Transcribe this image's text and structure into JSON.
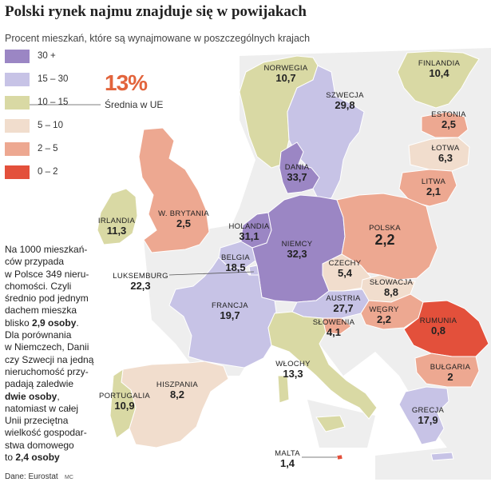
{
  "title": "Polski rynek najmu znajduje się w powijakach",
  "subtitle": "Procent mieszkań, które są wynajmowane w poszczególnych krajach",
  "legend": [
    {
      "label": "30 +",
      "color": "#9b86c4"
    },
    {
      "label": "15 – 30",
      "color": "#c7c3e6"
    },
    {
      "label": "10 – 15",
      "color": "#d9d9a4"
    },
    {
      "label": "5 – 10",
      "color": "#f1ddcd"
    },
    {
      "label": "2 – 5",
      "color": "#eda891"
    },
    {
      "label": "0 – 2",
      "color": "#e3503b"
    }
  ],
  "eu_average": {
    "value": "13%",
    "label": "Średnia w UE"
  },
  "note": {
    "p1": "Na 1000 mieszkań-",
    "p2": "ców przypada",
    "p3": "w Polsce 349 nieru-",
    "p4": "chomości. Czyli",
    "p5": "średnio pod jednym",
    "p6": "dachem mieszka",
    "p7": "blisko ",
    "p7b": "2,9 osoby",
    "p7c": ".",
    "p8": "Dla porównania",
    "p9": "w Niemczech, Danii",
    "p10": "czy Szwecji na jedną",
    "p11": "nieruchomość przy-",
    "p12": "padają zaledwie",
    "p13b": "dwie osoby",
    "p13c": ",",
    "p14": "natomiast w całej",
    "p15": "Unii przeciętna",
    "p16": "wielkość gospodar-",
    "p17": "stwa domowego",
    "p18": "to ",
    "p18b": "2,4 osoby"
  },
  "source": "Dane: Eurostat",
  "credit": "MC",
  "countries": [
    {
      "name": "NORWEGIA",
      "value": "10,7",
      "bucket": "10 – 15"
    },
    {
      "name": "FINLANDIA",
      "value": "10,4",
      "bucket": "10 – 15"
    },
    {
      "name": "SZWECJA",
      "value": "29,8",
      "bucket": "15 – 30"
    },
    {
      "name": "ESTONIA",
      "value": "2,5",
      "bucket": "2 – 5"
    },
    {
      "name": "ŁOTWA",
      "value": "6,3",
      "bucket": "5 – 10"
    },
    {
      "name": "LITWA",
      "value": "2,1",
      "bucket": "2 – 5"
    },
    {
      "name": "DANIA",
      "value": "33,7",
      "bucket": "30 +"
    },
    {
      "name": "IRLANDIA",
      "value": "11,3",
      "bucket": "10 – 15"
    },
    {
      "name": "W. BRYTANIA",
      "value": "2,5",
      "bucket": "2 – 5"
    },
    {
      "name": "HOLANDIA",
      "value": "31,1",
      "bucket": "30 +"
    },
    {
      "name": "POLSKA",
      "value": "2,2",
      "bucket": "2 – 5"
    },
    {
      "name": "BELGIA",
      "value": "18,5",
      "bucket": "15 – 30"
    },
    {
      "name": "NIEMCY",
      "value": "32,3",
      "bucket": "30 +"
    },
    {
      "name": "LUKSEMBURG",
      "value": "22,3",
      "bucket": "15 – 30"
    },
    {
      "name": "CZECHY",
      "value": "5,4",
      "bucket": "5 – 10"
    },
    {
      "name": "SŁOWACJA",
      "value": "8,8",
      "bucket": "5 – 10"
    },
    {
      "name": "FRANCJA",
      "value": "19,7",
      "bucket": "15 – 30"
    },
    {
      "name": "AUSTRIA",
      "value": "27,7",
      "bucket": "15 – 30"
    },
    {
      "name": "WĘGRY",
      "value": "2,2",
      "bucket": "2 – 5"
    },
    {
      "name": "SŁOWENIA",
      "value": "4,1",
      "bucket": "2 – 5"
    },
    {
      "name": "RUMUNIA",
      "value": "0,8",
      "bucket": "0 – 2"
    },
    {
      "name": "WŁOCHY",
      "value": "13,3",
      "bucket": "10 – 15"
    },
    {
      "name": "BUŁGARIA",
      "value": "2",
      "bucket": "2 – 5"
    },
    {
      "name": "HISZPANIA",
      "value": "8,2",
      "bucket": "5 – 10"
    },
    {
      "name": "PORTUGALIA",
      "value": "10,9",
      "bucket": "10 – 15"
    },
    {
      "name": "GRECJA",
      "value": "17,9",
      "bucket": "15 – 30"
    },
    {
      "name": "MALTA",
      "value": "1,4",
      "bucket": "0 – 2"
    }
  ]
}
